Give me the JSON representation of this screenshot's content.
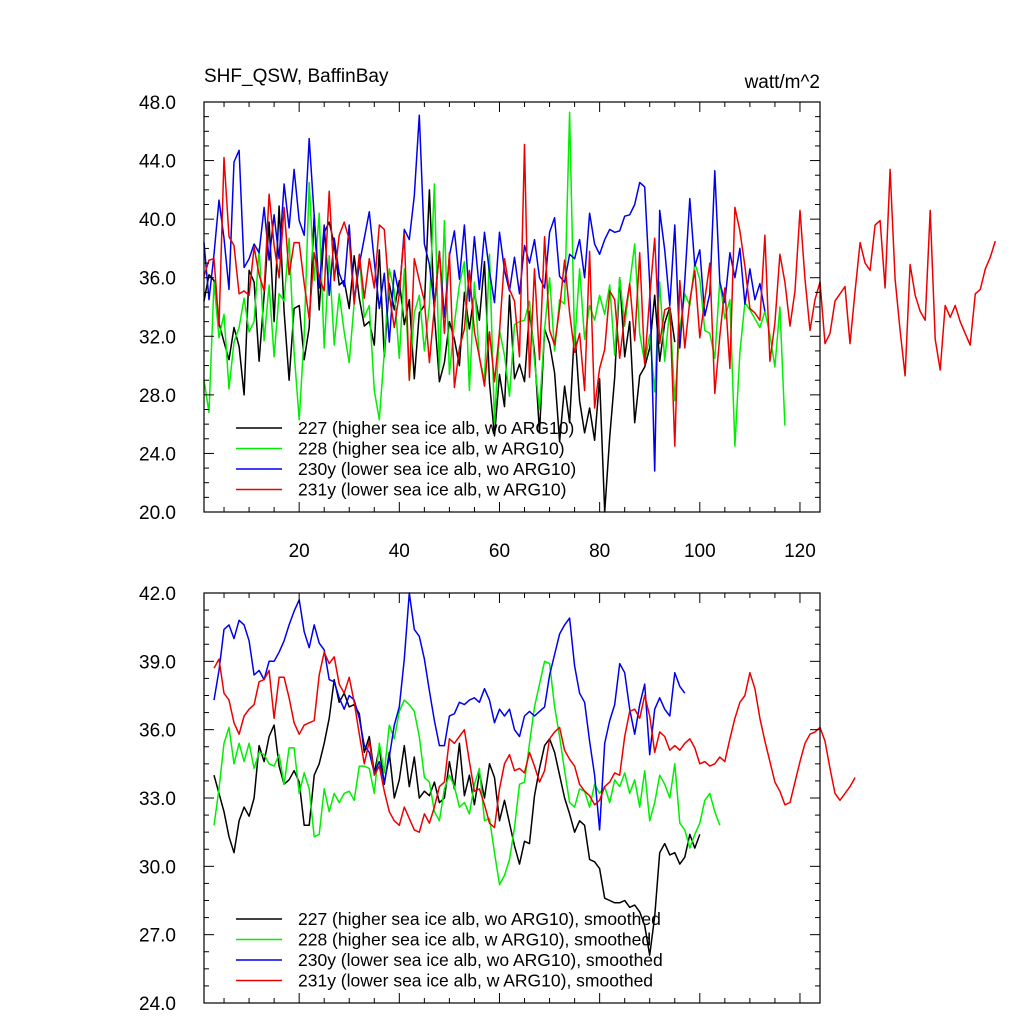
{
  "chart_data": [
    {
      "type": "line",
      "title": "SHF_QSW, BaffinBay",
      "units": "watt/m^2",
      "xlim": [
        1,
        124
      ],
      "ylim": [
        20.0,
        48.0
      ],
      "x_ticks": [
        20,
        40,
        60,
        80,
        100,
        120
      ],
      "x_tick_labels": [
        "20",
        "40",
        "60",
        "80",
        "100",
        "120"
      ],
      "y_ticks": [
        20.0,
        24.0,
        28.0,
        32.0,
        36.0,
        40.0,
        44.0,
        48.0
      ],
      "y_tick_labels": [
        "20.0",
        "24.0",
        "28.0",
        "32.0",
        "36.0",
        "40.0",
        "44.0",
        "48.0"
      ],
      "series": [
        {
          "name": "227 (higher sea ice alb, wo ARG10)",
          "color": "#000000",
          "x_start": 1,
          "values": [
            34.4,
            36.2,
            35.8,
            32.9,
            31.6,
            30.4,
            32.6,
            31.3,
            28.0,
            36.5,
            35.7,
            30.3,
            34.8,
            39.8,
            33.0,
            40.9,
            33.7,
            29.0,
            33.9,
            34.1,
            30.4,
            32.6,
            40.3,
            33.8,
            39.1,
            39.8,
            38.3,
            35.5,
            35.8,
            33.9,
            37.5,
            34.6,
            32.7,
            33.0,
            31.4,
            37.9,
            30.6,
            35.6,
            33.8,
            35.8,
            32.8,
            34.5,
            29.1,
            33.6,
            34.1,
            42.0,
            33.5,
            28.9,
            30.2,
            33.0,
            31.8,
            30.0,
            35.0,
            32.5,
            35.0,
            33.1,
            37.1,
            28.8,
            25.2,
            29.4,
            27.2,
            34.8,
            29.1,
            30.1,
            28.9,
            33.7,
            30.9,
            25.4,
            32.5,
            31.5,
            29.5,
            24.8,
            28.6,
            26.1,
            32.6,
            27.6,
            25.4,
            27.1,
            24.9,
            29.1,
            20.0,
            25.1,
            29.2,
            36.0,
            30.6,
            33.0,
            26.1,
            29.3,
            29.9,
            31.2,
            34.8,
            30.3,
            32.9,
            34.0,
            31.6
          ]
        },
        {
          "name": "228 (higher sea ice alb, w ARG10)",
          "color": "#00ee00",
          "x_start": 1,
          "values": [
            29.0,
            26.8,
            35.7,
            31.9,
            33.5,
            28.4,
            31.6,
            32.6,
            34.6,
            32.3,
            33.0,
            38.0,
            31.7,
            35.5,
            30.6,
            34.9,
            34.4,
            38.7,
            30.9,
            26.3,
            32.1,
            42.5,
            35.8,
            40.4,
            31.2,
            37.5,
            31.4,
            34.9,
            32.3,
            30.2,
            34.3,
            37.5,
            33.3,
            34.1,
            28.3,
            26.3,
            30.9,
            36.6,
            35.1,
            30.5,
            36.6,
            29.0,
            33.6,
            34.8,
            31.0,
            34.1,
            42.4,
            29.6,
            39.9,
            29.4,
            32.9,
            35.5,
            37.1,
            28.3,
            35.7,
            30.5,
            29.0,
            37.6,
            26.1,
            32.4,
            30.7,
            27.9,
            32.8,
            33.0,
            33.1,
            34.4,
            30.3,
            27.0,
            32.5,
            36.0,
            31.0,
            34.5,
            34.2,
            47.3,
            31.4,
            36.6,
            31.8,
            34.1,
            33.1,
            34.8,
            33.5,
            35.5,
            30.7,
            36.0,
            32.7,
            35.6,
            38.3,
            32.2,
            30.2,
            32.1,
            28.2,
            35.7,
            30.3,
            33.9,
            27.6,
            32.5,
            34.9,
            34.1,
            37.0,
            35.9,
            32.4,
            32.2,
            30.5,
            35.8,
            33.2,
            34.5,
            24.5,
            30.9,
            34.3,
            33.8,
            33.2,
            32.6,
            33.7,
            32.1,
            29.9,
            34.0,
            25.9
          ]
        },
        {
          "name": "230y (lower sea ice alb, wo ARG10)",
          "color": "#0000ee",
          "x_start": 1,
          "values": [
            38.4,
            34.5,
            37.6,
            41.3,
            38.7,
            35.2,
            43.9,
            44.7,
            36.7,
            37.3,
            38.3,
            37.7,
            40.8,
            37.2,
            40.3,
            37.3,
            42.4,
            39.4,
            43.4,
            39.9,
            38.9,
            45.5,
            40.2,
            35.3,
            39.6,
            34.8,
            38.7,
            36.3,
            35.4,
            39.6,
            34.4,
            36.9,
            38.7,
            40.5,
            37.1,
            33.9,
            36.3,
            31.6,
            36.5,
            34.8,
            39.3,
            38.6,
            41.6,
            47.1,
            38.3,
            36.9,
            34.0,
            37.8,
            33.3,
            37.5,
            39.2,
            35.9,
            39.6,
            34.4,
            38.8,
            35.2,
            39.1,
            36.4,
            34.3,
            39.1,
            36.5,
            35.1,
            37.4,
            34.9,
            38.2,
            37.0,
            38.6,
            36.0,
            35.3,
            39.1,
            40.1,
            36.1,
            35.7,
            37.6,
            37.3,
            38.6,
            36.0,
            40.4,
            38.3,
            37.6,
            38.6,
            39.3,
            39.1,
            39.2,
            40.2,
            40.3,
            41.0,
            42.5,
            42.2,
            35.6,
            22.8,
            40.6,
            37.9,
            34.1,
            39.6,
            31.2,
            35.8,
            41.4,
            36.8,
            37.9,
            33.4,
            34.9,
            43.3,
            35.7,
            34.3,
            37.7,
            36.0,
            38.0,
            34.2,
            36.6,
            34.5,
            35.6,
            33.7
          ]
        },
        {
          "name": "231y (lower sea ice alb, w ARG10)",
          "color": "#ee0000",
          "x_start": 1,
          "values": [
            36.1,
            37.2,
            37.3,
            32.7,
            44.2,
            38.8,
            38.2,
            34.9,
            35.1,
            34.8,
            38.1,
            36.2,
            35.1,
            41.7,
            38.2,
            36.0,
            40.8,
            36.2,
            38.4,
            38.4,
            35.6,
            33.2,
            37.7,
            36.0,
            35.1,
            41.9,
            35.8,
            38.9,
            39.8,
            38.6,
            34.2,
            37.6,
            34.6,
            37.3,
            35.3,
            39.6,
            39.3,
            34.8,
            32.6,
            34.9,
            39.0,
            29.0,
            37.3,
            35.8,
            34.4,
            30.2,
            34.0,
            37.8,
            32.2,
            37.7,
            28.5,
            31.2,
            32.5,
            36.5,
            32.3,
            30.6,
            28.6,
            32.3,
            28.9,
            32.3,
            37.3,
            35.2,
            34.4,
            30.6,
            45.1,
            29.2,
            36.6,
            30.4,
            38.8,
            32.4,
            31.4,
            33.9,
            37.2,
            33.6,
            30.9,
            32.2,
            28.3,
            37.8,
            27.1,
            29.8,
            31.1,
            35.1,
            34.5,
            30.5,
            33.4,
            35.6,
            31.7,
            37.7,
            30.1,
            34.7,
            38.7,
            31.5,
            33.8,
            34.0,
            24.5,
            35.8,
            31.2,
            34.4,
            36.5,
            31.9,
            34.5,
            37.0,
            28.1,
            32.0,
            35.3,
            29.8,
            40.8,
            39.2,
            36.8,
            33.9,
            33.6,
            33.1,
            38.9,
            30.3,
            32.9,
            37.6,
            35.7,
            32.7,
            35.1,
            40.6,
            35.9,
            32.4,
            34.5,
            35.7,
            31.5,
            32.2,
            34.4,
            34.9,
            35.4,
            31.5,
            35.1,
            38.4,
            37.0,
            36.5,
            39.6,
            39.9,
            35.3,
            43.4,
            35.9,
            32.4,
            29.3,
            36.9,
            34.8,
            33.7,
            33.1,
            40.6,
            31.8,
            29.7,
            34.1,
            33.3,
            34.1,
            33.0,
            32.2,
            31.4,
            34.9,
            35.2,
            36.6,
            37.4,
            38.5
          ]
        }
      ]
    },
    {
      "type": "line",
      "title": "",
      "xlim": [
        1,
        124
      ],
      "ylim": [
        24.0,
        42.0
      ],
      "x_ticks": [
        20,
        40,
        60,
        80,
        100,
        120
      ],
      "y_ticks": [
        24.0,
        27.0,
        30.0,
        33.0,
        36.0,
        39.0,
        42.0
      ],
      "y_tick_labels": [
        "24.0",
        "27.0",
        "30.0",
        "33.0",
        "36.0",
        "39.0",
        "42.0"
      ],
      "series": [
        {
          "name": "227 (higher sea ice alb, wo ARG10), smoothed",
          "color": "#000000",
          "x_start": 3,
          "values": [
            34.0,
            33.2,
            32.4,
            31.3,
            30.6,
            32.0,
            32.6,
            32.2,
            33.0,
            35.3,
            34.6,
            35.7,
            36.2,
            34.4,
            33.6,
            33.8,
            34.2,
            33.7,
            31.8,
            31.8,
            34.0,
            34.5,
            35.4,
            36.5,
            38.2,
            37.2,
            37.6,
            37.0,
            37.1,
            36.7,
            35.0,
            35.7,
            34.1,
            35.2,
            33.6,
            35.0,
            33.0,
            33.8,
            35.3,
            33.5,
            34.8,
            33.0,
            33.3,
            33.1,
            33.7,
            32.8,
            33.0,
            34.6,
            33.4,
            35.4,
            33.1,
            34.0,
            32.7,
            34.1,
            33.0,
            34.5,
            33.9,
            32.0,
            32.9,
            31.9,
            30.9,
            30.1,
            31.1,
            31.0,
            33.1,
            34.3,
            35.3,
            35.6,
            35.0,
            34.0,
            33.0,
            32.3,
            31.5,
            32.0,
            31.8,
            30.3,
            30.2,
            29.9,
            28.6,
            28.5,
            28.4,
            28.4,
            28.5,
            28.2,
            28.3,
            28.0,
            27.4,
            26.1,
            27.8,
            30.6,
            31.0,
            30.5,
            30.6,
            30.1,
            30.4,
            31.4,
            30.8,
            31.4
          ]
        },
        {
          "name": "228 (higher sea ice alb, w ARG10), smoothed",
          "color": "#00ee00",
          "x_start": 3,
          "values": [
            31.8,
            33.4,
            35.4,
            36.1,
            34.5,
            35.4,
            34.6,
            35.4,
            34.3,
            35.0,
            34.9,
            34.5,
            34.4,
            34.9,
            33.6,
            35.2,
            35.2,
            33.2,
            34.1,
            33.4,
            31.3,
            31.4,
            33.4,
            32.4,
            33.2,
            32.8,
            33.2,
            33.3,
            32.9,
            34.4,
            34.4,
            34.3,
            33.2,
            35.4,
            34.1,
            36.2,
            35.6,
            36.8,
            37.3,
            37.1,
            36.8,
            35.7,
            33.9,
            33.7,
            32.4,
            32.0,
            33.4,
            34.0,
            33.5,
            32.6,
            32.8,
            32.3,
            33.6,
            34.3,
            32.0,
            32.1,
            30.6,
            29.2,
            29.6,
            30.3,
            31.7,
            33.6,
            33.7,
            35.4,
            37.0,
            38.0,
            39.0,
            38.9,
            37.0,
            35.7,
            34.2,
            32.8,
            32.6,
            33.4,
            33.3,
            32.6,
            33.6,
            33.2,
            33.5,
            32.8,
            33.8,
            33.5,
            34.1,
            33.2,
            33.8,
            32.6,
            34.2,
            32.0,
            32.8,
            34.0,
            33.6,
            33.0,
            34.5,
            31.9,
            31.6,
            30.8,
            31.4,
            31.9,
            32.9,
            33.2,
            32.4,
            31.8
          ]
        },
        {
          "name": "230y (lower sea ice alb, wo ARG10), smoothed",
          "color": "#0000ee",
          "x_start": 3,
          "values": [
            37.3,
            38.6,
            40.4,
            40.6,
            40.0,
            40.8,
            40.6,
            39.9,
            38.4,
            38.6,
            38.2,
            39.0,
            39.0,
            39.4,
            39.9,
            40.6,
            41.2,
            41.7,
            40.3,
            39.6,
            40.6,
            39.8,
            39.5,
            38.2,
            38.1,
            37.4,
            36.9,
            37.5,
            37.3,
            36.5,
            35.3,
            35.0,
            34.1,
            34.6,
            33.7,
            34.8,
            36.2,
            37.0,
            39.1,
            42.0,
            40.4,
            40.1,
            39.1,
            37.7,
            36.4,
            35.3,
            35.3,
            36.6,
            36.7,
            37.2,
            37.1,
            37.3,
            37.4,
            37.2,
            37.8,
            37.3,
            36.3,
            36.9,
            36.6,
            36.9,
            36.0,
            35.7,
            36.6,
            36.8,
            36.6,
            36.8,
            37.0,
            38.4,
            39.3,
            40.2,
            40.6,
            40.9,
            38.8,
            37.6,
            37.2,
            35.5,
            34.0,
            31.6,
            35.4,
            36.4,
            37.1,
            38.9,
            38.5,
            36.9,
            35.8,
            37.1,
            38.0,
            34.9,
            36.9,
            37.4,
            36.9,
            36.6,
            38.5,
            37.9,
            37.6
          ]
        },
        {
          "name": "231y (lower sea ice alb, w ARG10), smoothed",
          "color": "#ee0000",
          "x_start": 3,
          "values": [
            38.7,
            39.1,
            37.6,
            37.3,
            36.3,
            35.8,
            36.6,
            36.9,
            37.1,
            38.1,
            38.2,
            38.6,
            36.5,
            38.3,
            38.3,
            37.4,
            36.3,
            35.8,
            36.2,
            36.3,
            36.4,
            38.4,
            39.4,
            38.9,
            39.2,
            38.0,
            37.6,
            38.3,
            37.2,
            35.8,
            34.5,
            35.5,
            34.0,
            34.4,
            33.3,
            32.4,
            32.0,
            31.8,
            32.6,
            32.1,
            31.6,
            31.5,
            32.3,
            31.9,
            32.6,
            33.5,
            33.7,
            35.6,
            35.4,
            35.7,
            36.0,
            34.6,
            33.3,
            33.4,
            32.7,
            31.9,
            31.7,
            33.4,
            34.5,
            34.9,
            34.2,
            34.3,
            34.1,
            35.0,
            34.4,
            33.7,
            34.2,
            35.6,
            35.9,
            36.1,
            35.1,
            34.7,
            34.4,
            33.6,
            33.3,
            33.1,
            32.7,
            32.9,
            33.5,
            33.7,
            34.1,
            34.0,
            35.7,
            36.8,
            36.9,
            36.5,
            37.5,
            36.6,
            35.0,
            35.9,
            35.7,
            35.1,
            35.3,
            35.1,
            35.4,
            35.6,
            35.2,
            34.5,
            34.6,
            34.4,
            34.5,
            34.8,
            34.6,
            35.6,
            36.5,
            37.2,
            37.5,
            38.5,
            37.8,
            36.5,
            35.5,
            34.6,
            33.7,
            33.3,
            32.7,
            32.8,
            33.7,
            34.6,
            35.4,
            35.8,
            35.9,
            36.1,
            35.5,
            34.3,
            33.2,
            32.9,
            33.2,
            33.5,
            33.9
          ]
        }
      ]
    }
  ]
}
